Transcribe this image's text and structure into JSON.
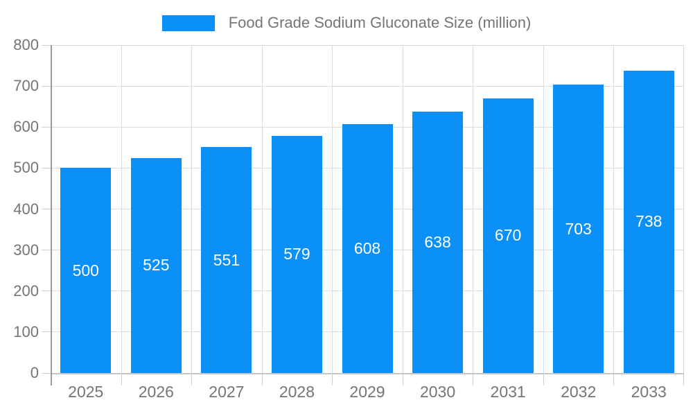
{
  "legend": {
    "label": "Food Grade Sodium Gluconate Size (million)"
  },
  "chart_data": {
    "type": "bar",
    "title": "Food Grade Sodium Gluconate Size (million)",
    "categories": [
      "2025",
      "2026",
      "2027",
      "2028",
      "2029",
      "2030",
      "2031",
      "2032",
      "2033"
    ],
    "values": [
      500,
      525,
      551,
      579,
      608,
      638,
      670,
      703,
      738
    ],
    "bar_labels": [
      "500",
      "525",
      "551",
      "579",
      "608",
      "638",
      "670",
      "703",
      "738"
    ],
    "xlabel": "",
    "ylabel": "",
    "ylim": [
      0,
      800
    ],
    "y_ticks": [
      0,
      100,
      200,
      300,
      400,
      500,
      600,
      700,
      800
    ],
    "grid": true,
    "legend_position": "top-center",
    "colors": {
      "bar": "#0B90F7",
      "bar_label_text": "#FFFFFF",
      "axis_text": "#757575",
      "y_axis_line": "#9A9A9A",
      "x_axis_line": "#C6C6C6",
      "gridline": "#DCDCDC",
      "tick": "#CFCFCF",
      "background": "#FFFFFF"
    }
  }
}
